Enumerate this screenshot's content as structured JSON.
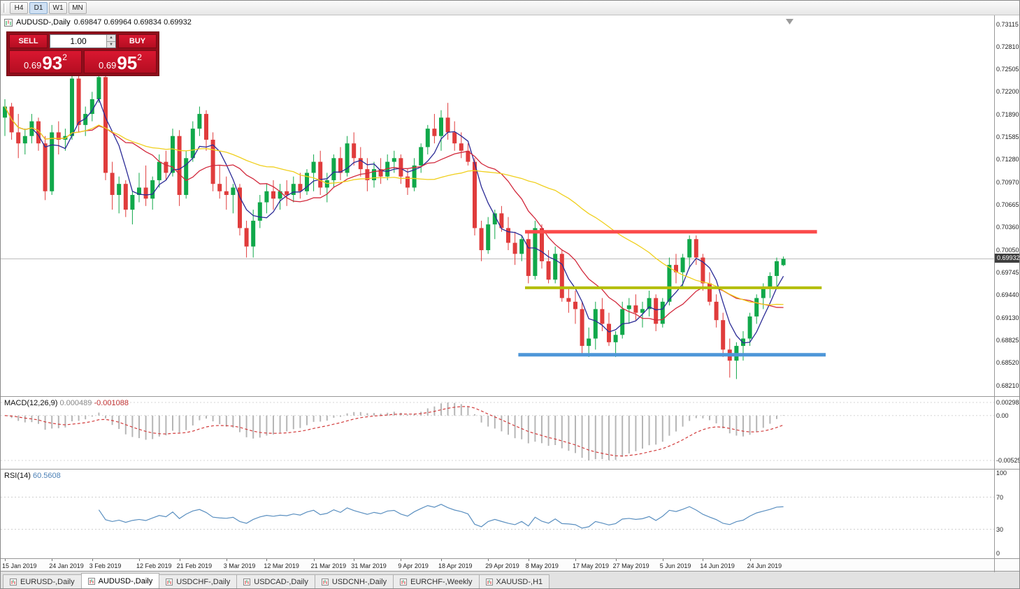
{
  "toolbar": {
    "period_buttons": [
      {
        "label": "H4",
        "active": false
      },
      {
        "label": "D1",
        "active": true
      },
      {
        "label": "W1",
        "active": false
      },
      {
        "label": "MN",
        "active": false
      }
    ]
  },
  "chart": {
    "symbol_period": "AUDUSD-,Daily",
    "ohlc_text": "0.69847 0.69964 0.69834 0.69932"
  },
  "trade_panel": {
    "sell_button": "SELL",
    "buy_button": "BUY",
    "volume": "1.00",
    "icons": {
      "up": "▲",
      "down": "▼"
    },
    "sell_price": {
      "prefix": "0.69",
      "pips": "93",
      "pipette": "2"
    },
    "buy_price": {
      "prefix": "0.69",
      "pips": "95",
      "pipette": "2"
    }
  },
  "price_axis": {
    "current": "0.69932",
    "labels": [
      "0.73115",
      "0.72810",
      "0.72505",
      "0.72200",
      "0.71890",
      "0.71585",
      "0.71280",
      "0.70970",
      "0.70665",
      "0.70360",
      "0.70050",
      "0.69745",
      "0.69440",
      "0.69130",
      "0.68825",
      "0.68520",
      "0.68210"
    ]
  },
  "macd": {
    "label": "MACD(12,26,9)",
    "main_value": "0.000489",
    "signal_value": "-0.001088",
    "axis": {
      "top": "0.002984",
      "zero": "0.00",
      "bottom": "-0.005257"
    }
  },
  "rsi": {
    "label": "RSI(14)",
    "value": "60.5608",
    "axis": [
      "100",
      "70",
      "30",
      "0"
    ]
  },
  "date_axis": {
    "ticks": [
      {
        "label": "15 Jan 2019",
        "index": 0
      },
      {
        "label": "24 Jan 2019",
        "index": 7
      },
      {
        "label": "3 Feb 2019",
        "index": 13
      },
      {
        "label": "12 Feb 2019",
        "index": 20
      },
      {
        "label": "21 Feb 2019",
        "index": 26
      },
      {
        "label": "3 Mar 2019",
        "index": 33
      },
      {
        "label": "12 Mar 2019",
        "index": 39
      },
      {
        "label": "21 Mar 2019",
        "index": 46
      },
      {
        "label": "31 Mar 2019",
        "index": 52
      },
      {
        "label": "9 Apr 2019",
        "index": 59
      },
      {
        "label": "18 Apr 2019",
        "index": 65
      },
      {
        "label": "29 Apr 2019",
        "index": 72
      },
      {
        "label": "8 May 2019",
        "index": 78
      },
      {
        "label": "17 May 2019",
        "index": 85
      },
      {
        "label": "27 May 2019",
        "index": 91
      },
      {
        "label": "5 Jun 2019",
        "index": 98
      },
      {
        "label": "14 Jun 2019",
        "index": 104
      },
      {
        "label": "24 Jun 2019",
        "index": 111
      }
    ]
  },
  "tabbar": {
    "tabs": [
      {
        "label": "EURUSD-,Daily",
        "active": false
      },
      {
        "label": "AUDUSD-,Daily",
        "active": true
      },
      {
        "label": "USDCHF-,Daily",
        "active": false
      },
      {
        "label": "USDCAD-,Daily",
        "active": false
      },
      {
        "label": "USDCNH-,Daily",
        "active": false
      },
      {
        "label": "EURCHF-,Weekly",
        "active": false
      },
      {
        "label": "XAUUSD-,H1",
        "active": false
      }
    ]
  },
  "colors": {
    "bull": "#10a84a",
    "bear": "#e03c3c",
    "price_line": "#bcbcbc",
    "badge_bg": "#3e3e3e",
    "macd_hist": "#b6b6b6",
    "macd_signal": "#d23b3b",
    "rsi_line": "#5a8fc0",
    "panel_red": "#c8102e"
  },
  "chart_data": {
    "type": "candlestick",
    "symbol": "AUDUSD",
    "timeframe": "Daily",
    "title": "AUDUSD-,Daily",
    "current_price": 0.69932,
    "price_range": [
      0.6821,
      0.73115
    ],
    "ohlc": [
      [
        0.7185,
        0.721,
        0.716,
        0.72
      ],
      [
        0.72,
        0.7205,
        0.7155,
        0.7165
      ],
      [
        0.7165,
        0.719,
        0.713,
        0.715
      ],
      [
        0.715,
        0.717,
        0.7135,
        0.716
      ],
      [
        0.716,
        0.719,
        0.715,
        0.718
      ],
      [
        0.718,
        0.7185,
        0.714,
        0.715
      ],
      [
        0.715,
        0.716,
        0.7073,
        0.7085
      ],
      [
        0.7085,
        0.7175,
        0.708,
        0.7165
      ],
      [
        0.7165,
        0.718,
        0.7135,
        0.7155
      ],
      [
        0.7155,
        0.717,
        0.714,
        0.716
      ],
      [
        0.716,
        0.7245,
        0.7155,
        0.7238
      ],
      [
        0.7238,
        0.7245,
        0.7165,
        0.7175
      ],
      [
        0.7175,
        0.72,
        0.716,
        0.719
      ],
      [
        0.719,
        0.722,
        0.718,
        0.721
      ],
      [
        0.721,
        0.7245,
        0.7205,
        0.724
      ],
      [
        0.724,
        0.7245,
        0.71,
        0.711
      ],
      [
        0.711,
        0.7125,
        0.706,
        0.708
      ],
      [
        0.708,
        0.7105,
        0.7055,
        0.7095
      ],
      [
        0.7095,
        0.71,
        0.705,
        0.706
      ],
      [
        0.706,
        0.7085,
        0.704,
        0.708
      ],
      [
        0.708,
        0.711,
        0.707,
        0.709
      ],
      [
        0.709,
        0.712,
        0.7065,
        0.7075
      ],
      [
        0.7075,
        0.7105,
        0.706,
        0.71
      ],
      [
        0.71,
        0.7135,
        0.709,
        0.7125
      ],
      [
        0.7125,
        0.714,
        0.71,
        0.711
      ],
      [
        0.711,
        0.717,
        0.7105,
        0.716
      ],
      [
        0.716,
        0.7168,
        0.7065,
        0.708
      ],
      [
        0.708,
        0.714,
        0.7075,
        0.713
      ],
      [
        0.713,
        0.718,
        0.7125,
        0.717
      ],
      [
        0.717,
        0.72,
        0.716,
        0.719
      ],
      [
        0.719,
        0.7195,
        0.714,
        0.7155
      ],
      [
        0.7155,
        0.7165,
        0.7085,
        0.7095
      ],
      [
        0.7095,
        0.712,
        0.7075,
        0.7085
      ],
      [
        0.7085,
        0.7105,
        0.706,
        0.708
      ],
      [
        0.708,
        0.7095,
        0.7055,
        0.709
      ],
      [
        0.709,
        0.7095,
        0.7025,
        0.7035
      ],
      [
        0.7035,
        0.7045,
        0.6995,
        0.701
      ],
      [
        0.701,
        0.706,
        0.6995,
        0.7045
      ],
      [
        0.7045,
        0.708,
        0.7035,
        0.707
      ],
      [
        0.707,
        0.7095,
        0.7055,
        0.7085
      ],
      [
        0.7085,
        0.71,
        0.706,
        0.7075
      ],
      [
        0.7075,
        0.7095,
        0.706,
        0.7085
      ],
      [
        0.7085,
        0.71,
        0.7065,
        0.708
      ],
      [
        0.708,
        0.7105,
        0.707,
        0.7095
      ],
      [
        0.7095,
        0.711,
        0.7075,
        0.7085
      ],
      [
        0.7085,
        0.7115,
        0.708,
        0.711
      ],
      [
        0.711,
        0.7135,
        0.7085,
        0.7125
      ],
      [
        0.7125,
        0.714,
        0.708,
        0.709
      ],
      [
        0.709,
        0.711,
        0.707,
        0.71
      ],
      [
        0.71,
        0.7135,
        0.709,
        0.713
      ],
      [
        0.713,
        0.7145,
        0.71,
        0.711
      ],
      [
        0.711,
        0.716,
        0.7105,
        0.715
      ],
      [
        0.715,
        0.7165,
        0.712,
        0.713
      ],
      [
        0.713,
        0.7145,
        0.7105,
        0.7115
      ],
      [
        0.7115,
        0.713,
        0.7085,
        0.71
      ],
      [
        0.71,
        0.7125,
        0.709,
        0.7115
      ],
      [
        0.7115,
        0.713,
        0.7095,
        0.7105
      ],
      [
        0.7105,
        0.7135,
        0.71,
        0.7125
      ],
      [
        0.7125,
        0.714,
        0.711,
        0.713
      ],
      [
        0.713,
        0.7135,
        0.7095,
        0.7105
      ],
      [
        0.7105,
        0.7115,
        0.708,
        0.709
      ],
      [
        0.709,
        0.713,
        0.7085,
        0.712
      ],
      [
        0.712,
        0.715,
        0.711,
        0.7145
      ],
      [
        0.7145,
        0.7175,
        0.7135,
        0.717
      ],
      [
        0.717,
        0.719,
        0.715,
        0.716
      ],
      [
        0.716,
        0.7195,
        0.714,
        0.7185
      ],
      [
        0.7185,
        0.7205,
        0.7155,
        0.7165
      ],
      [
        0.7165,
        0.718,
        0.714,
        0.715
      ],
      [
        0.715,
        0.7165,
        0.713,
        0.714
      ],
      [
        0.714,
        0.715,
        0.712,
        0.7125
      ],
      [
        0.7125,
        0.713,
        0.7025,
        0.7035
      ],
      [
        0.7035,
        0.7045,
        0.699,
        0.7005
      ],
      [
        0.7005,
        0.705,
        0.7,
        0.704
      ],
      [
        0.704,
        0.706,
        0.702,
        0.7055
      ],
      [
        0.7055,
        0.7065,
        0.703,
        0.7035
      ],
      [
        0.7035,
        0.705,
        0.7005,
        0.7015
      ],
      [
        0.7015,
        0.703,
        0.6985,
        0.7
      ],
      [
        0.7,
        0.7025,
        0.699,
        0.702
      ],
      [
        0.702,
        0.703,
        0.696,
        0.697
      ],
      [
        0.697,
        0.7045,
        0.6965,
        0.7035
      ],
      [
        0.7035,
        0.704,
        0.698,
        0.699
      ],
      [
        0.699,
        0.7005,
        0.696,
        0.6965
      ],
      [
        0.6965,
        0.701,
        0.696,
        0.7
      ],
      [
        0.7,
        0.7005,
        0.6935,
        0.694
      ],
      [
        0.694,
        0.6955,
        0.692,
        0.6935
      ],
      [
        0.6935,
        0.695,
        0.6905,
        0.6925
      ],
      [
        0.6925,
        0.6935,
        0.6865,
        0.6875
      ],
      [
        0.6875,
        0.69,
        0.686,
        0.6885
      ],
      [
        0.6885,
        0.6935,
        0.687,
        0.6925
      ],
      [
        0.6925,
        0.694,
        0.6895,
        0.6905
      ],
      [
        0.6905,
        0.692,
        0.6875,
        0.688
      ],
      [
        0.688,
        0.6895,
        0.686,
        0.689
      ],
      [
        0.689,
        0.6935,
        0.6885,
        0.6925
      ],
      [
        0.6925,
        0.694,
        0.6905,
        0.693
      ],
      [
        0.693,
        0.6945,
        0.691,
        0.692
      ],
      [
        0.692,
        0.6935,
        0.69,
        0.6925
      ],
      [
        0.6925,
        0.695,
        0.6915,
        0.694
      ],
      [
        0.694,
        0.6945,
        0.6895,
        0.6905
      ],
      [
        0.6905,
        0.694,
        0.69,
        0.6935
      ],
      [
        0.6935,
        0.6995,
        0.693,
        0.6985
      ],
      [
        0.6985,
        0.7,
        0.696,
        0.6975
      ],
      [
        0.6975,
        0.7,
        0.6955,
        0.6995
      ],
      [
        0.6995,
        0.7025,
        0.698,
        0.702
      ],
      [
        0.702,
        0.7025,
        0.6985,
        0.6995
      ],
      [
        0.6995,
        0.7,
        0.695,
        0.696
      ],
      [
        0.696,
        0.6975,
        0.693,
        0.6935
      ],
      [
        0.6935,
        0.6945,
        0.69,
        0.691
      ],
      [
        0.691,
        0.692,
        0.686,
        0.687
      ],
      [
        0.687,
        0.6885,
        0.6832,
        0.6855
      ],
      [
        0.6855,
        0.688,
        0.683,
        0.6875
      ],
      [
        0.6875,
        0.6895,
        0.6855,
        0.6885
      ],
      [
        0.6885,
        0.692,
        0.6875,
        0.6915
      ],
      [
        0.6915,
        0.6945,
        0.6905,
        0.694
      ],
      [
        0.694,
        0.696,
        0.6925,
        0.6955
      ],
      [
        0.6955,
        0.6975,
        0.694,
        0.697
      ],
      [
        0.697,
        0.6995,
        0.6955,
        0.699
      ],
      [
        0.69847,
        0.69964,
        0.69834,
        0.69932
      ]
    ],
    "overlays": {
      "moving_averages": [
        {
          "name": "ma-fast",
          "period": 5,
          "color": "#2b2b96"
        },
        {
          "name": "ma-mid",
          "period": 13,
          "color": "#d2293c"
        },
        {
          "name": "ma-slow",
          "period": 34,
          "color": "#f0cf1c"
        }
      ],
      "horizontal_lines": [
        {
          "name": "resistance-line",
          "price": 0.703,
          "color": "#fb4b4b",
          "from_index": 77.5,
          "to_index": 121.0,
          "width": 5
        },
        {
          "name": "pivot-line",
          "price": 0.6954,
          "color": "#b4be07",
          "from_index": 77.5,
          "to_index": 121.7,
          "width": 4
        },
        {
          "name": "support-line",
          "price": 0.6863,
          "color": "#4e96d8",
          "from_index": 76.5,
          "to_index": 122.3,
          "width": 5
        }
      ]
    },
    "indicators": [
      {
        "type": "MACD",
        "params": [
          12,
          26,
          9
        ],
        "main": 0.000489,
        "signal": -0.001088
      },
      {
        "type": "RSI",
        "params": [
          14
        ],
        "value": 60.5608
      }
    ]
  }
}
